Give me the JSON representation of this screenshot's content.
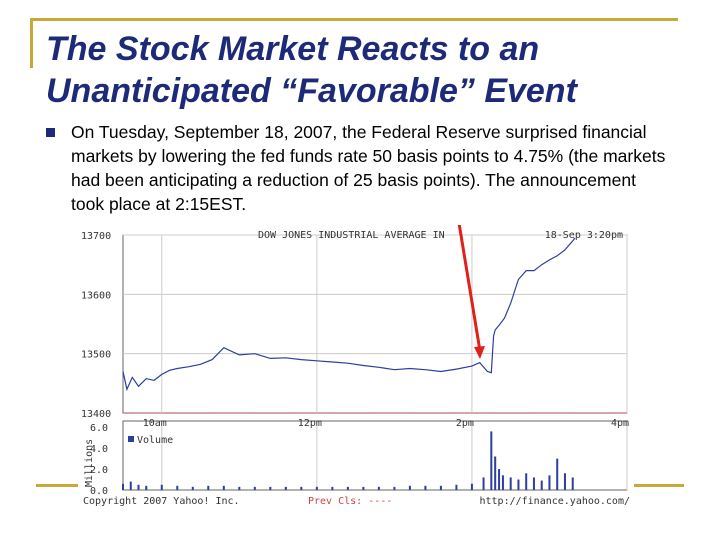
{
  "slide": {
    "title": "The Stock Market Reacts to an Unanticipated “Favorable” Event",
    "bullet_text": "On Tuesday, September 18, 2007, the Federal Reserve surprised financial markets by lowering the fed funds rate 50 basis points to 4.75% (the markets had been anticipating a reduction of 25 basis points). The announcement took place at 2:15EST."
  },
  "colors": {
    "title": "#1d2a78",
    "accent": "#c9a83a",
    "line": "#2c3ea0",
    "arrow": "#e0201a",
    "prevclose": "#d04040"
  },
  "chart_data": {
    "type": "line",
    "title": "DOW JONES INDUSTRIAL AVERAGE IN",
    "timestamp": "18-Sep 3:20pm",
    "price_ticks": [
      "13700",
      "13600",
      "13500",
      "13400"
    ],
    "ylim": [
      13400,
      13700
    ],
    "time_ticks": [
      "10am",
      "12pm",
      "2pm",
      "4pm"
    ],
    "x": [
      9.5,
      9.55,
      9.62,
      9.7,
      9.8,
      9.9,
      10.0,
      10.1,
      10.2,
      10.35,
      10.5,
      10.65,
      10.8,
      11.0,
      11.2,
      11.4,
      11.6,
      11.8,
      12.0,
      12.2,
      12.4,
      12.6,
      12.8,
      13.0,
      13.2,
      13.4,
      13.6,
      13.8,
      14.0,
      14.1,
      14.2,
      14.25,
      14.28,
      14.3,
      14.35,
      14.42,
      14.5,
      14.6,
      14.7,
      14.8,
      14.9,
      15.0,
      15.1,
      15.2,
      15.3,
      15.33
    ],
    "y": [
      13470,
      13440,
      13460,
      13445,
      13458,
      13455,
      13465,
      13472,
      13475,
      13478,
      13482,
      13490,
      13510,
      13498,
      13500,
      13492,
      13493,
      13490,
      13488,
      13486,
      13484,
      13480,
      13477,
      13473,
      13475,
      13473,
      13470,
      13474,
      13479,
      13485,
      13470,
      13468,
      13530,
      13540,
      13548,
      13560,
      13585,
      13625,
      13640,
      13640,
      13650,
      13658,
      13665,
      13675,
      13690,
      13695
    ],
    "volume": {
      "label": "Volume",
      "unit_label": "Millions",
      "ticks": [
        "6.0",
        "4.0",
        "2.0",
        "0.0"
      ],
      "ylim": [
        0,
        6.5
      ],
      "x": [
        9.5,
        9.6,
        9.7,
        9.8,
        10.0,
        10.2,
        10.4,
        10.6,
        10.8,
        11.0,
        11.2,
        11.4,
        11.6,
        11.8,
        12.0,
        12.2,
        12.4,
        12.6,
        12.8,
        13.0,
        13.2,
        13.4,
        13.6,
        13.8,
        14.0,
        14.15,
        14.25,
        14.3,
        14.35,
        14.4,
        14.5,
        14.6,
        14.7,
        14.8,
        14.9,
        15.0,
        15.1,
        15.2,
        15.3
      ],
      "values": [
        0.6,
        0.8,
        0.5,
        0.4,
        0.5,
        0.4,
        0.3,
        0.4,
        0.4,
        0.3,
        0.3,
        0.3,
        0.3,
        0.3,
        0.3,
        0.3,
        0.3,
        0.3,
        0.3,
        0.3,
        0.4,
        0.4,
        0.4,
        0.5,
        0.6,
        1.2,
        5.6,
        3.2,
        2.0,
        1.4,
        1.2,
        1.0,
        1.6,
        1.2,
        0.9,
        1.4,
        3.0,
        1.6,
        1.2
      ]
    },
    "footer": {
      "copyright": "Copyright 2007 Yahoo! Inc.",
      "prev_close": "Prev Cls: ----",
      "url": "http://finance.yahoo.com/"
    }
  }
}
